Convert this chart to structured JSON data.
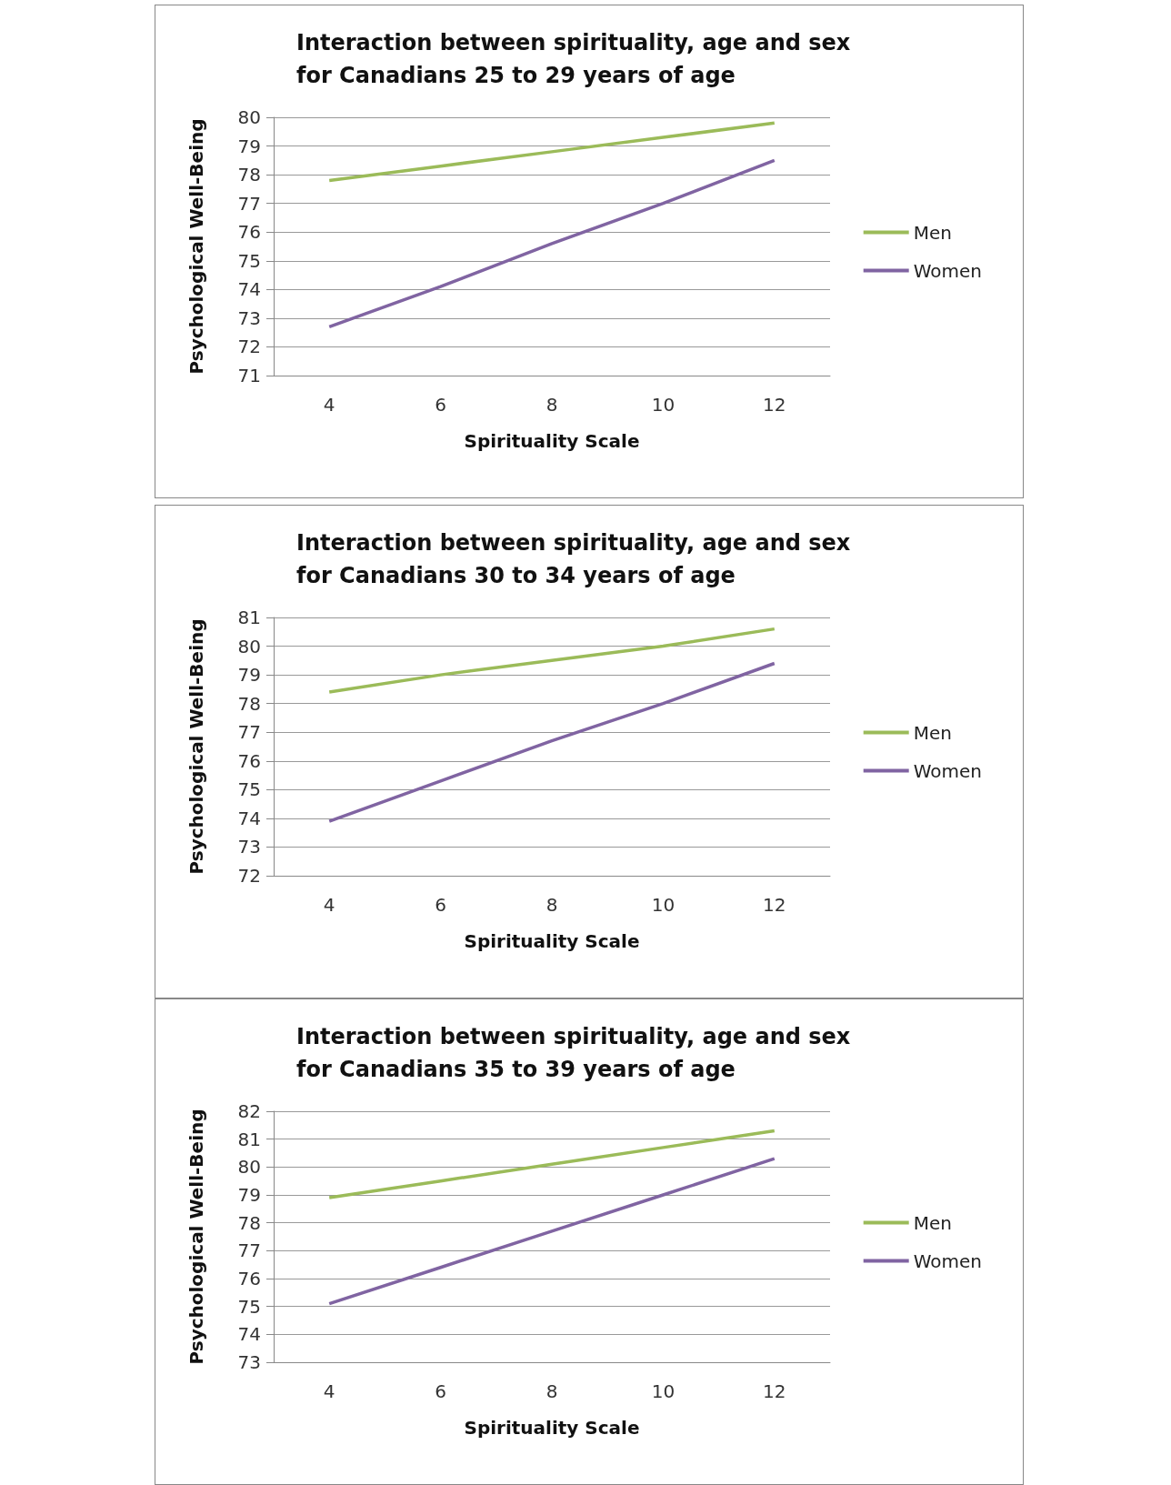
{
  "chart_data": [
    {
      "type": "line",
      "title": "Interaction between spirituality, age and sex for Canadians 25 to 29 years of age",
      "xlabel": "Spirituality Scale",
      "ylabel": "Psychological Well-Being",
      "categories": [
        "4",
        "6",
        "8",
        "10",
        "12"
      ],
      "series": [
        {
          "name": "Men",
          "color": "#9bbb59",
          "values": [
            77.8,
            78.3,
            78.8,
            79.3,
            79.8
          ]
        },
        {
          "name": "Women",
          "color": "#8064a2",
          "values": [
            72.7,
            74.1,
            75.6,
            77.0,
            78.5
          ]
        }
      ],
      "ylim": [
        71,
        80
      ],
      "yticks": [
        71,
        72,
        73,
        74,
        75,
        76,
        77,
        78,
        79,
        80
      ],
      "grid": "y",
      "legend": "right",
      "marker": "none"
    },
    {
      "type": "line",
      "title": "Interaction between spirituality, age and sex for Canadians 30 to 34 years of age",
      "xlabel": "Spirituality Scale",
      "ylabel": "Psychological Well-Being",
      "categories": [
        "4",
        "6",
        "8",
        "10",
        "12"
      ],
      "series": [
        {
          "name": "Men",
          "color": "#9bbb59",
          "values": [
            78.4,
            79.0,
            79.5,
            80.0,
            80.6
          ]
        },
        {
          "name": "Women",
          "color": "#8064a2",
          "values": [
            73.9,
            75.3,
            76.7,
            78.0,
            79.4
          ]
        }
      ],
      "ylim": [
        72,
        81
      ],
      "yticks": [
        72,
        73,
        74,
        75,
        76,
        77,
        78,
        79,
        80,
        81
      ],
      "grid": "y",
      "legend": "right",
      "marker": "none"
    },
    {
      "type": "line",
      "title": "Interaction between spirituality, age and sex for Canadians 35 to 39 years of age",
      "xlabel": "Spirituality Scale",
      "ylabel": "Psychological Well-Being",
      "categories": [
        "4",
        "6",
        "8",
        "10",
        "12"
      ],
      "series": [
        {
          "name": "Men",
          "color": "#9bbb59",
          "values": [
            78.9,
            79.5,
            80.1,
            80.7,
            81.3
          ]
        },
        {
          "name": "Women",
          "color": "#8064a2",
          "values": [
            75.1,
            76.4,
            77.7,
            79.0,
            80.3
          ]
        }
      ],
      "ylim": [
        73,
        82
      ],
      "yticks": [
        73,
        74,
        75,
        76,
        77,
        78,
        79,
        80,
        81,
        82
      ],
      "grid": "y",
      "legend": "right",
      "marker": "none"
    }
  ]
}
